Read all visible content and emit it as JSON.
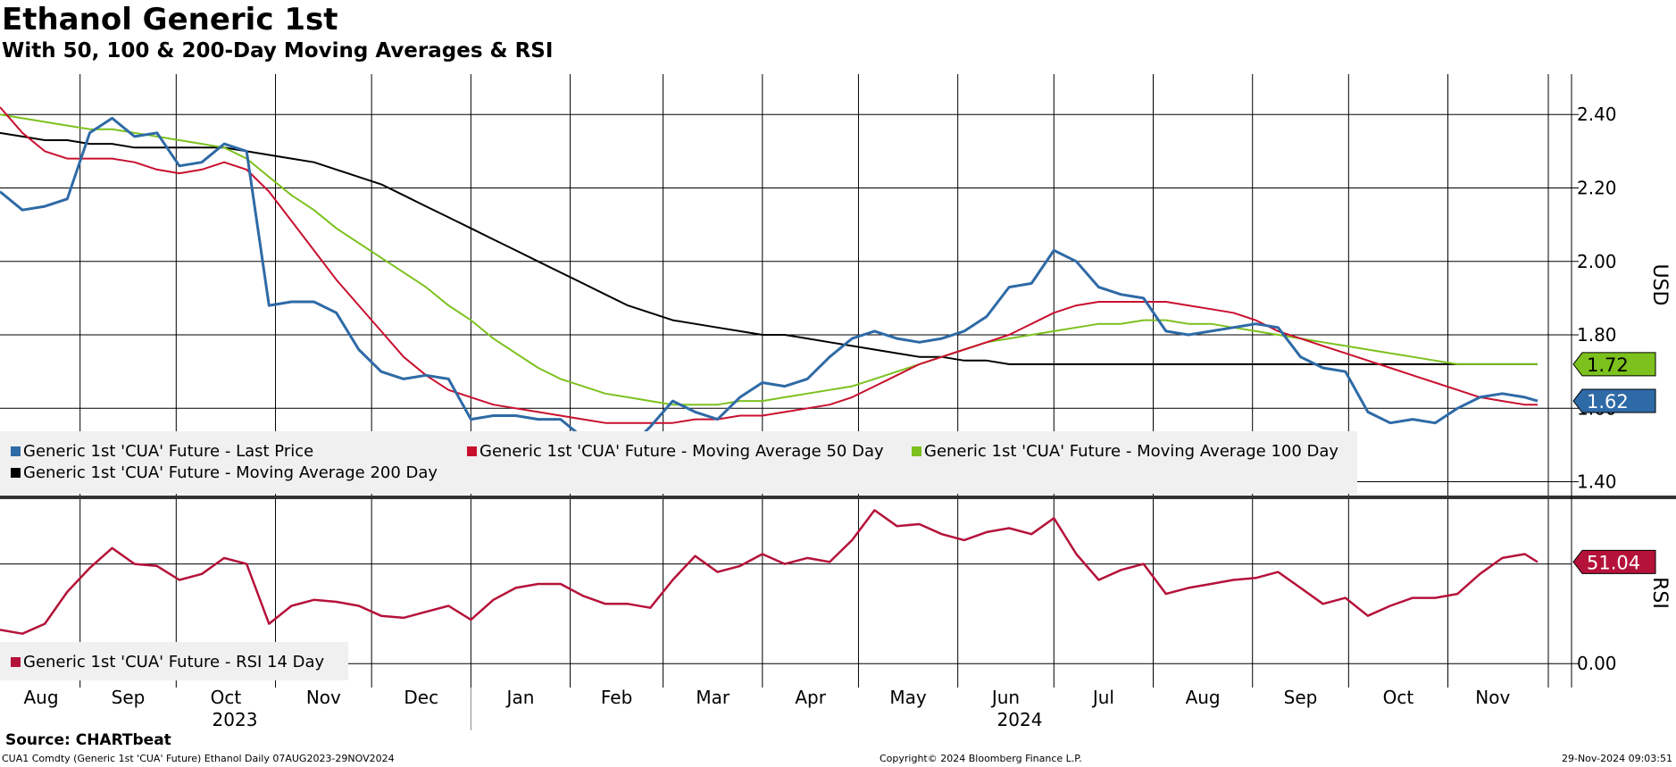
{
  "header": {
    "title": "Ethanol Generic 1st",
    "subtitle": "With 50, 100 & 200-Day Moving Averages & RSI"
  },
  "footer": {
    "source": "Source: CHARTbeat",
    "ticker_info": "CUA1 Comdty (Generic 1st 'CUA' Future) Ethanol  Daily 07AUG2023-29NOV2024",
    "copyright": "Copyright© 2024 Bloomberg Finance L.P.",
    "timestamp": "29-Nov-2024 09:03:51"
  },
  "colors": {
    "price": "#2e6aa6",
    "ma50": "#c8102e",
    "ma100": "#7cc11e",
    "ma200": "#000000",
    "rsi": "#b5123a"
  },
  "chart_data": [
    {
      "type": "line",
      "title": "Ethanol Generic 1st",
      "ylabel": "USD",
      "ylim": [
        1.36,
        2.51
      ],
      "yticks": [
        "1.40",
        "1.60",
        "1.80",
        "2.00",
        "2.20",
        "2.40"
      ],
      "x_month_labels": [
        "Aug",
        "Sep",
        "Oct",
        "Nov",
        "Dec",
        "Jan",
        "Feb",
        "Mar",
        "Apr",
        "May",
        "Jun",
        "Jul",
        "Aug",
        "Sep",
        "Oct",
        "Nov"
      ],
      "x_year_labels": [
        "2023",
        "2024"
      ],
      "x": [
        "2023-08-07",
        "2023-08-14",
        "2023-08-21",
        "2023-08-28",
        "2023-09-04",
        "2023-09-11",
        "2023-09-18",
        "2023-09-25",
        "2023-10-02",
        "2023-10-09",
        "2023-10-16",
        "2023-10-23",
        "2023-10-30",
        "2023-11-06",
        "2023-11-13",
        "2023-11-20",
        "2023-11-27",
        "2023-12-04",
        "2023-12-11",
        "2023-12-18",
        "2023-12-25",
        "2024-01-01",
        "2024-01-08",
        "2024-01-15",
        "2024-01-22",
        "2024-01-29",
        "2024-02-05",
        "2024-02-12",
        "2024-02-19",
        "2024-02-26",
        "2024-03-04",
        "2024-03-11",
        "2024-03-18",
        "2024-03-25",
        "2024-04-01",
        "2024-04-08",
        "2024-04-15",
        "2024-04-22",
        "2024-04-29",
        "2024-05-06",
        "2024-05-13",
        "2024-05-20",
        "2024-05-27",
        "2024-06-03",
        "2024-06-10",
        "2024-06-17",
        "2024-06-24",
        "2024-07-01",
        "2024-07-08",
        "2024-07-15",
        "2024-07-22",
        "2024-07-29",
        "2024-08-05",
        "2024-08-12",
        "2024-08-19",
        "2024-08-26",
        "2024-09-02",
        "2024-09-09",
        "2024-09-16",
        "2024-09-23",
        "2024-09-30",
        "2024-10-07",
        "2024-10-14",
        "2024-10-21",
        "2024-10-28",
        "2024-11-04",
        "2024-11-11",
        "2024-11-18",
        "2024-11-25",
        "2024-11-29"
      ],
      "series": [
        {
          "name": "Generic 1st 'CUA' Future - Last Price",
          "color_key": "price",
          "values": [
            2.19,
            2.14,
            2.15,
            2.17,
            2.35,
            2.39,
            2.34,
            2.35,
            2.26,
            2.27,
            2.32,
            2.3,
            1.88,
            1.89,
            1.89,
            1.86,
            1.76,
            1.7,
            1.68,
            1.69,
            1.68,
            1.57,
            1.58,
            1.58,
            1.57,
            1.57,
            1.52,
            1.5,
            1.49,
            1.55,
            1.62,
            1.59,
            1.57,
            1.63,
            1.67,
            1.66,
            1.68,
            1.74,
            1.79,
            1.81,
            1.79,
            1.78,
            1.79,
            1.81,
            1.85,
            1.93,
            1.94,
            2.03,
            2.0,
            1.93,
            1.91,
            1.9,
            1.81,
            1.8,
            1.81,
            1.82,
            1.83,
            1.82,
            1.74,
            1.71,
            1.7,
            1.59,
            1.56,
            1.57,
            1.56,
            1.6,
            1.63,
            1.64,
            1.63,
            1.62
          ]
        },
        {
          "name": "Generic 1st 'CUA' Future - Moving Average 50 Day",
          "color_key": "ma50",
          "values": [
            2.42,
            2.35,
            2.3,
            2.28,
            2.28,
            2.28,
            2.27,
            2.25,
            2.24,
            2.25,
            2.27,
            2.25,
            2.19,
            2.11,
            2.03,
            1.95,
            1.88,
            1.81,
            1.74,
            1.69,
            1.65,
            1.63,
            1.61,
            1.6,
            1.59,
            1.58,
            1.57,
            1.56,
            1.56,
            1.56,
            1.56,
            1.57,
            1.57,
            1.58,
            1.58,
            1.59,
            1.6,
            1.61,
            1.63,
            1.66,
            1.69,
            1.72,
            1.74,
            1.76,
            1.78,
            1.8,
            1.83,
            1.86,
            1.88,
            1.89,
            1.89,
            1.89,
            1.89,
            1.88,
            1.87,
            1.86,
            1.84,
            1.81,
            1.79,
            1.77,
            1.75,
            1.73,
            1.71,
            1.69,
            1.67,
            1.65,
            1.63,
            1.62,
            1.61,
            1.61
          ]
        },
        {
          "name": "Generic 1st 'CUA' Future - Moving Average 100 Day",
          "color_key": "ma100",
          "values": [
            2.4,
            2.39,
            2.38,
            2.37,
            2.36,
            2.36,
            2.35,
            2.34,
            2.33,
            2.32,
            2.31,
            2.28,
            2.23,
            2.18,
            2.14,
            2.09,
            2.05,
            2.01,
            1.97,
            1.93,
            1.88,
            1.84,
            1.79,
            1.75,
            1.71,
            1.68,
            1.66,
            1.64,
            1.63,
            1.62,
            1.61,
            1.61,
            1.61,
            1.62,
            1.62,
            1.63,
            1.64,
            1.65,
            1.66,
            1.68,
            1.7,
            1.72,
            1.74,
            1.76,
            1.78,
            1.79,
            1.8,
            1.81,
            1.82,
            1.83,
            1.83,
            1.84,
            1.84,
            1.83,
            1.83,
            1.82,
            1.81,
            1.8,
            1.79,
            1.78,
            1.77,
            1.76,
            1.75,
            1.74,
            1.73,
            1.72,
            1.72,
            1.72,
            1.72,
            1.72
          ]
        },
        {
          "name": "Generic 1st 'CUA' Future - Moving Average 200 Day",
          "color_key": "ma200",
          "values": [
            2.35,
            2.34,
            2.33,
            2.33,
            2.32,
            2.32,
            2.31,
            2.31,
            2.31,
            2.31,
            2.31,
            2.3,
            2.29,
            2.28,
            2.27,
            2.25,
            2.23,
            2.21,
            2.18,
            2.15,
            2.12,
            2.09,
            2.06,
            2.03,
            2.0,
            1.97,
            1.94,
            1.91,
            1.88,
            1.86,
            1.84,
            1.83,
            1.82,
            1.81,
            1.8,
            1.8,
            1.79,
            1.78,
            1.77,
            1.76,
            1.75,
            1.74,
            1.74,
            1.73,
            1.73,
            1.72,
            1.72,
            1.72,
            1.72,
            1.72,
            1.72,
            1.72,
            1.72,
            1.72,
            1.72,
            1.72,
            1.72,
            1.72,
            1.72,
            1.72,
            1.72,
            1.72,
            1.72,
            1.72,
            1.72,
            1.72,
            1.72,
            1.72,
            1.72,
            1.72
          ]
        }
      ],
      "last_value_labels": [
        {
          "value": "1.72",
          "color_key": "ma100",
          "y": 1.72
        },
        {
          "value": "1.62",
          "color_key": "price",
          "y": 1.62
        }
      ]
    },
    {
      "type": "line",
      "ylabel": "RSI",
      "ylim": [
        -12,
        83
      ],
      "yticks": [
        "0.00"
      ],
      "x": [
        "2023-08-07",
        "2023-08-14",
        "2023-08-21",
        "2023-08-28",
        "2023-09-04",
        "2023-09-11",
        "2023-09-18",
        "2023-09-25",
        "2023-10-02",
        "2023-10-09",
        "2023-10-16",
        "2023-10-23",
        "2023-10-30",
        "2023-11-06",
        "2023-11-13",
        "2023-11-20",
        "2023-11-27",
        "2023-12-04",
        "2023-12-11",
        "2023-12-18",
        "2023-12-25",
        "2024-01-01",
        "2024-01-08",
        "2024-01-15",
        "2024-01-22",
        "2024-01-29",
        "2024-02-05",
        "2024-02-12",
        "2024-02-19",
        "2024-02-26",
        "2024-03-04",
        "2024-03-11",
        "2024-03-18",
        "2024-03-25",
        "2024-04-01",
        "2024-04-08",
        "2024-04-15",
        "2024-04-22",
        "2024-04-29",
        "2024-05-06",
        "2024-05-13",
        "2024-05-20",
        "2024-05-27",
        "2024-06-03",
        "2024-06-10",
        "2024-06-17",
        "2024-06-24",
        "2024-07-01",
        "2024-07-08",
        "2024-07-15",
        "2024-07-22",
        "2024-07-29",
        "2024-08-05",
        "2024-08-12",
        "2024-08-19",
        "2024-08-26",
        "2024-09-02",
        "2024-09-09",
        "2024-09-16",
        "2024-09-23",
        "2024-09-30",
        "2024-10-07",
        "2024-10-14",
        "2024-10-21",
        "2024-10-28",
        "2024-11-04",
        "2024-11-11",
        "2024-11-18",
        "2024-11-25",
        "2024-11-29"
      ],
      "series": [
        {
          "name": "Generic 1st 'CUA' Future - RSI 14 Day",
          "color_key": "rsi",
          "values": [
            17,
            15,
            20,
            36,
            48,
            58,
            50,
            49,
            42,
            45,
            53,
            50,
            20,
            29,
            32,
            31,
            29,
            24,
            23,
            26,
            29,
            22,
            32,
            38,
            40,
            40,
            34,
            30,
            30,
            28,
            42,
            54,
            46,
            49,
            55,
            50,
            53,
            51,
            62,
            77,
            69,
            70,
            65,
            62,
            66,
            68,
            65,
            73,
            55,
            42,
            47,
            50,
            35,
            38,
            40,
            42,
            43,
            46,
            38,
            30,
            33,
            24,
            29,
            33,
            33,
            35,
            45,
            53,
            55,
            51
          ]
        }
      ],
      "last_value_labels": [
        {
          "value": "51.04",
          "color_key": "rsi",
          "y": 51.04
        }
      ]
    }
  ]
}
